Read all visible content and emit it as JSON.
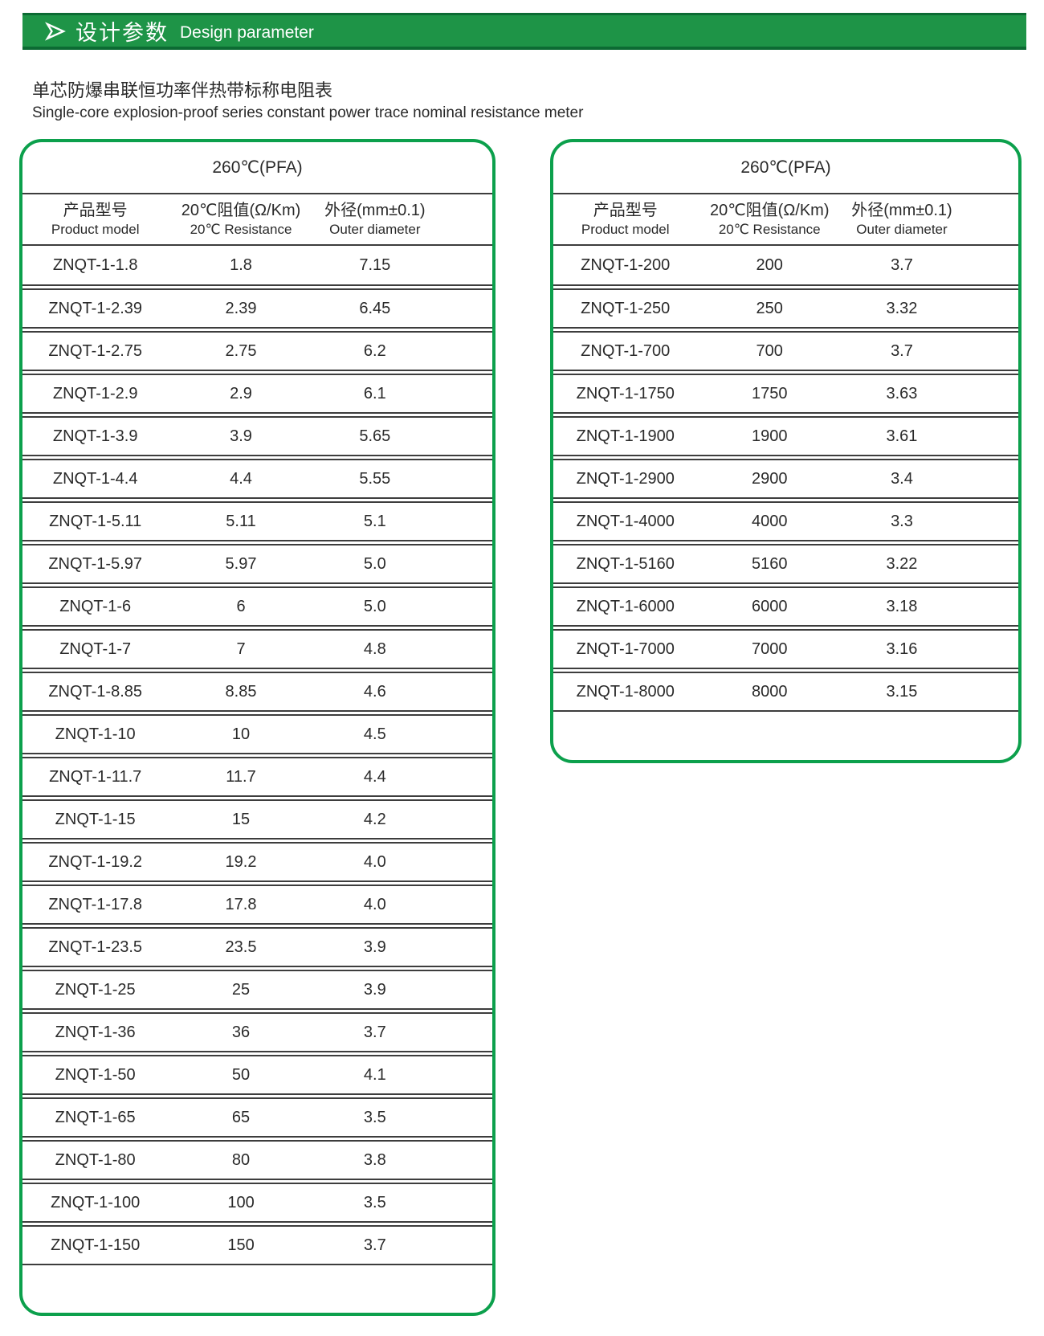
{
  "banner": {
    "title_zh": "设计参数",
    "title_en": "Design parameter"
  },
  "subtitle": {
    "zh": "单芯防爆串联恒功率伴热带标称电阻表",
    "en": "Single-core explosion-proof series constant power trace nominal resistance meter"
  },
  "tables": [
    {
      "temp_header": "260℃(PFA)",
      "columns": [
        {
          "zh": "产品型号",
          "en": "Product model"
        },
        {
          "zh": "20℃阻值(Ω/Km)",
          "en": "20℃ Resistance"
        },
        {
          "zh": "外径(mm±0.1)",
          "en": "Outer diameter"
        }
      ],
      "rows": [
        [
          "ZNQT-1-1.8",
          "1.8",
          "7.15"
        ],
        [
          "ZNQT-1-2.39",
          "2.39",
          "6.45"
        ],
        [
          "ZNQT-1-2.75",
          "2.75",
          "6.2"
        ],
        [
          "ZNQT-1-2.9",
          "2.9",
          "6.1"
        ],
        [
          "ZNQT-1-3.9",
          "3.9",
          "5.65"
        ],
        [
          "ZNQT-1-4.4",
          "4.4",
          "5.55"
        ],
        [
          "ZNQT-1-5.11",
          "5.11",
          "5.1"
        ],
        [
          "ZNQT-1-5.97",
          "5.97",
          "5.0"
        ],
        [
          "ZNQT-1-6",
          "6",
          "5.0"
        ],
        [
          "ZNQT-1-7",
          "7",
          "4.8"
        ],
        [
          "ZNQT-1-8.85",
          "8.85",
          "4.6"
        ],
        [
          "ZNQT-1-10",
          "10",
          "4.5"
        ],
        [
          "ZNQT-1-11.7",
          "11.7",
          "4.4"
        ],
        [
          "ZNQT-1-15",
          "15",
          "4.2"
        ],
        [
          "ZNQT-1-19.2",
          "19.2",
          "4.0"
        ],
        [
          "ZNQT-1-17.8",
          "17.8",
          "4.0"
        ],
        [
          "ZNQT-1-23.5",
          "23.5",
          "3.9"
        ],
        [
          "ZNQT-1-25",
          "25",
          "3.9"
        ],
        [
          "ZNQT-1-36",
          "36",
          "3.7"
        ],
        [
          "ZNQT-1-50",
          "50",
          "4.1"
        ],
        [
          "ZNQT-1-65",
          "65",
          "3.5"
        ],
        [
          "ZNQT-1-80",
          "80",
          "3.8"
        ],
        [
          "ZNQT-1-100",
          "100",
          "3.5"
        ],
        [
          "ZNQT-1-150",
          "150",
          "3.7"
        ]
      ]
    },
    {
      "temp_header": "260℃(PFA)",
      "columns": [
        {
          "zh": "产品型号",
          "en": "Product model"
        },
        {
          "zh": "20℃阻值(Ω/Km)",
          "en": "20℃ Resistance"
        },
        {
          "zh": "外径(mm±0.1)",
          "en": "Outer diameter"
        }
      ],
      "rows": [
        [
          "ZNQT-1-200",
          "200",
          "3.7"
        ],
        [
          "ZNQT-1-250",
          "250",
          "3.32"
        ],
        [
          "ZNQT-1-700",
          "700",
          "3.7"
        ],
        [
          "ZNQT-1-1750",
          "1750",
          "3.63"
        ],
        [
          "ZNQT-1-1900",
          "1900",
          "3.61"
        ],
        [
          "ZNQT-1-2900",
          "2900",
          "3.4"
        ],
        [
          "ZNQT-1-4000",
          "4000",
          "3.3"
        ],
        [
          "ZNQT-1-5160",
          "5160",
          "3.22"
        ],
        [
          "ZNQT-1-6000",
          "6000",
          "3.18"
        ],
        [
          "ZNQT-1-7000",
          "7000",
          "3.16"
        ],
        [
          "ZNQT-1-8000",
          "8000",
          "3.15"
        ]
      ]
    }
  ],
  "colors": {
    "banner_green": "#1E9447",
    "border_green": "#0CA04C",
    "line_color": "#3D3D3D"
  }
}
